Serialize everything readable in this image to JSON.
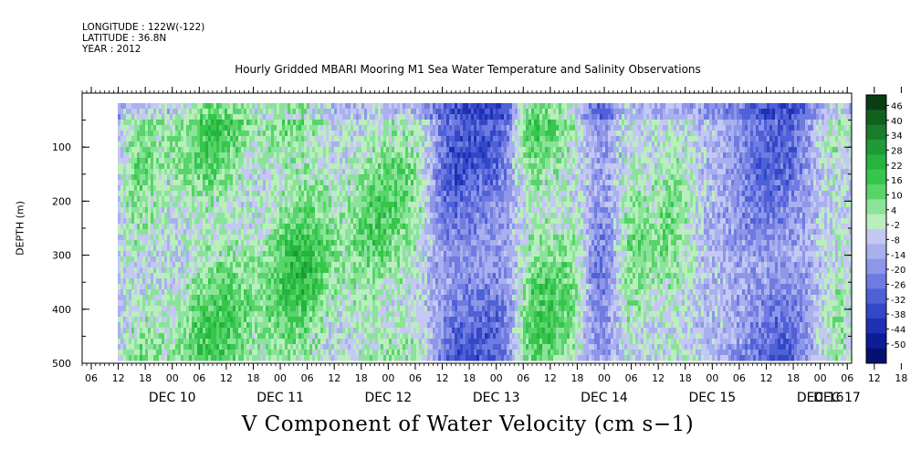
{
  "header": {
    "longitude": "LONGITUDE : 122W(-122)",
    "latitude": "LATITUDE : 36.8N",
    "year": "YEAR : 2012"
  },
  "chart_data": {
    "type": "heatmap",
    "title": "Hourly Gridded MBARI Mooring M1 Sea Water Temperature and Salinity Observations",
    "bottom_label": "V Component of Water Velocity (cm s−1)",
    "ylabel": "DEPTH (m)",
    "y_axis": {
      "range": [
        500,
        0
      ],
      "ticks": [
        100,
        200,
        300,
        400,
        500
      ],
      "tick_labels": [
        "100",
        "200",
        "300",
        "400",
        "500"
      ]
    },
    "x_axis": {
      "hour_labels": [
        "06",
        "12",
        "18",
        "00",
        "06",
        "12",
        "18",
        "00",
        "06",
        "12",
        "18",
        "00",
        "06",
        "12",
        "18",
        "00",
        "06",
        "12",
        "18",
        "00",
        "06",
        "12",
        "18",
        "00",
        "06",
        "12",
        "18",
        "00",
        "06",
        "12",
        "18",
        "00",
        "06"
      ],
      "day_labels": [
        "DEC 10",
        "DEC 11",
        "DEC 12",
        "DEC 13",
        "DEC 14",
        "DEC 15",
        "DEC 16",
        "DEC 17"
      ]
    },
    "colorbar": {
      "levels": [
        "46",
        "40",
        "34",
        "28",
        "22",
        "16",
        "10",
        "4",
        "-2",
        "-8",
        "-14",
        "-20",
        "-26",
        "-32",
        "-38",
        "-44",
        "-50"
      ],
      "colors": [
        "#0a3d14",
        "#12601f",
        "#1a7d2b",
        "#1f9a36",
        "#26b33f",
        "#35c64b",
        "#58d46a",
        "#8be39a",
        "#b9eebd",
        "#c4c8f2",
        "#a9b0ee",
        "#8d96e8",
        "#6f7be0",
        "#5060d6",
        "#3348c8",
        "#1e30b3",
        "#0c1d96",
        "#061070"
      ]
    },
    "field": {
      "description_colors": {
        "positive_green": "#4ecf5c",
        "negative_blue": "#8090e6"
      },
      "green_bands_hours": [
        {
          "start_hour": 12,
          "end_hour": 20,
          "strength": 0.6
        },
        {
          "start_hour": 26,
          "end_hour": 40,
          "strength": 0.9
        },
        {
          "start_hour": 46,
          "end_hour": 58,
          "strength": 1.0
        },
        {
          "start_hour": 64,
          "end_hour": 72,
          "strength": 0.7
        },
        {
          "start_hour": 73,
          "end_hour": 80,
          "strength": 0.6
        },
        {
          "start_hour": 100,
          "end_hour": 108,
          "strength": 0.9
        },
        {
          "start_hour": 110,
          "end_hour": 116,
          "strength": 0.6
        },
        {
          "start_hour": 122,
          "end_hour": 128,
          "strength": 0.7
        },
        {
          "start_hour": 132,
          "end_hour": 138,
          "strength": 0.6
        },
        {
          "start_hour": 168,
          "end_hour": 174,
          "strength": 0.5
        }
      ],
      "blue_bands_hours": [
        {
          "start_hour": 4,
          "end_hour": 10,
          "strength": 0.6
        },
        {
          "start_hour": 82,
          "end_hour": 92,
          "strength": 0.8
        },
        {
          "start_hour": 94,
          "end_hour": 100,
          "strength": 0.7
        },
        {
          "start_hour": 116,
          "end_hour": 122,
          "strength": 0.8
        },
        {
          "start_hour": 150,
          "end_hour": 165,
          "strength": 0.7
        }
      ]
    }
  }
}
